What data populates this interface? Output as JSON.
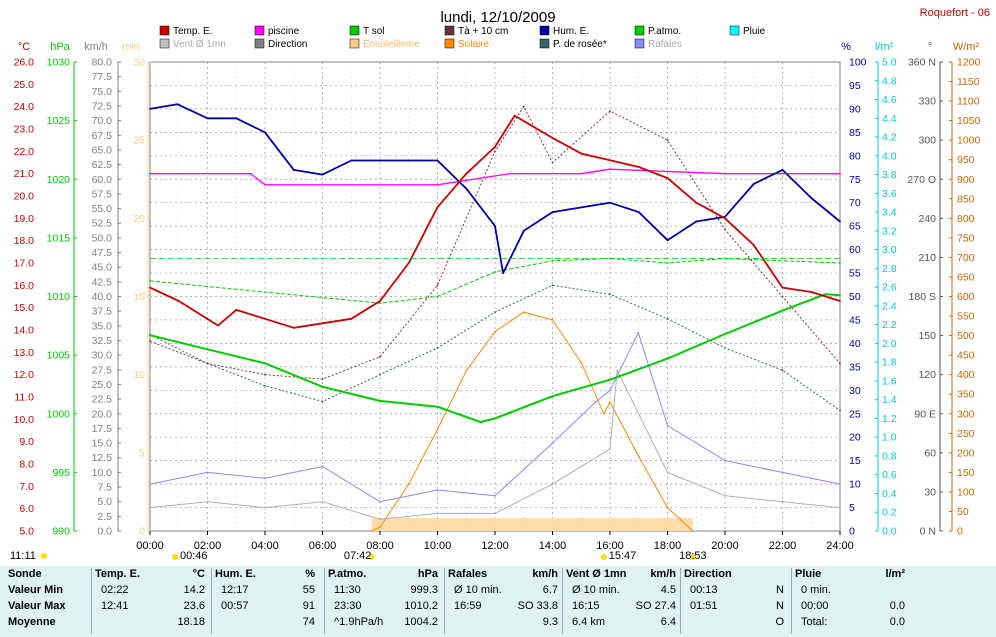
{
  "header": {
    "title": "lundi, 12/10/2009",
    "station": "Roquefort - 06"
  },
  "legend": [
    {
      "label": "Temp. E.",
      "color": "#cc0000"
    },
    {
      "label": "piscine",
      "color": "#ff00ff"
    },
    {
      "label": "T sol",
      "color": "#00cc00"
    },
    {
      "label": "Tà + 10 cm",
      "color": "#663333"
    },
    {
      "label": "Hum. E.",
      "color": "#0000aa"
    },
    {
      "label": "P.atmo.",
      "color": "#00cc00"
    },
    {
      "label": "Pluie",
      "color": "#00ffff"
    },
    {
      "label": "Vent Ø 1mn",
      "color": "#c0c0c0"
    },
    {
      "label": "Direction",
      "color": "#808080"
    },
    {
      "label": "Ensoleilleme",
      "color": "#ffcc88"
    },
    {
      "label": "Solaire",
      "color": "#ff8800"
    },
    {
      "label": "P. de rosée*",
      "color": "#336666"
    },
    {
      "label": "Rafales",
      "color": "#8888ff"
    }
  ],
  "axes": {
    "temp": {
      "unit": "°C",
      "color": "#cc0000",
      "ticks": [
        "5.0",
        "6.0",
        "7.0",
        "8.0",
        "9.0",
        "10.0",
        "11.0",
        "12.0",
        "13.0",
        "14.0",
        "15.0",
        "16.0",
        "17.0",
        "18.0",
        "19.0",
        "20.0",
        "21.0",
        "22.0",
        "23.0",
        "24.0",
        "25.0",
        "26.0"
      ]
    },
    "pressure": {
      "unit": "hPa",
      "color": "#00cc00",
      "ticks": [
        "990",
        "995",
        "1000",
        "1005",
        "1010",
        "1015",
        "1020",
        "1025",
        "1030"
      ]
    },
    "wind": {
      "unit": "km/h",
      "color": "#808080",
      "ticks": [
        "0.0",
        "2.5",
        "5.0",
        "7.5",
        "10.0",
        "12.5",
        "15.0",
        "17.5",
        "20.0",
        "22.5",
        "25.0",
        "27.5",
        "30.0",
        "32.5",
        "35.0",
        "37.5",
        "40.0",
        "42.5",
        "45.0",
        "47.5",
        "50.0",
        "52.5",
        "55.0",
        "57.5",
        "60.0",
        "62.5",
        "65.0",
        "67.5",
        "70.0",
        "72.5",
        "75.0",
        "77.5",
        "80.0"
      ]
    },
    "sunshine": {
      "unit": "min",
      "color": "#ffcc88",
      "ticks": [
        "0",
        "5",
        "10",
        "15",
        "20",
        "25",
        "30"
      ]
    },
    "humidity": {
      "unit": "%",
      "color": "#0000aa",
      "ticks": [
        "0",
        "5",
        "10",
        "15",
        "20",
        "25",
        "30",
        "35",
        "40",
        "45",
        "50",
        "55",
        "60",
        "65",
        "70",
        "75",
        "80",
        "85",
        "90",
        "95",
        "100"
      ]
    },
    "rain": {
      "unit": "l/m²",
      "color": "#00cccc",
      "ticks": [
        "0.0",
        "0.2",
        "0.4",
        "0.6",
        "0.8",
        "1.0",
        "1.2",
        "1.4",
        "1.6",
        "1.8",
        "2.0",
        "2.2",
        "2.4",
        "2.6",
        "2.8",
        "3.0",
        "3.2",
        "3.4",
        "3.6",
        "3.8",
        "4.0",
        "4.2",
        "4.4",
        "4.6",
        "4.8",
        "5.0"
      ]
    },
    "direction": {
      "unit": "°",
      "color": "#808080",
      "ticks": [
        "0 N",
        "30",
        "60",
        "90 E",
        "120",
        "150",
        "180 S",
        "210",
        "240",
        "270 O",
        "300",
        "330",
        "360 N"
      ]
    },
    "solar": {
      "unit": "W/m²",
      "color": "#cc6600",
      "ticks": [
        "0",
        "50",
        "100",
        "150",
        "200",
        "250",
        "300",
        "350",
        "400",
        "450",
        "500",
        "550",
        "600",
        "650",
        "700",
        "750",
        "800",
        "850",
        "900",
        "950",
        "1000",
        "1050",
        "1100",
        "1150",
        "1200"
      ]
    },
    "time_ticks": [
      "00:00",
      "02:00",
      "04:00",
      "06:00",
      "08:00",
      "10:00",
      "12:00",
      "14:00",
      "16:00",
      "18:00",
      "20:00",
      "22:00",
      "24:00"
    ]
  },
  "events": {
    "moonrise": "11:11",
    "moon2": "00:46",
    "sunrise": "07:42",
    "solar_noon": "15:47",
    "sunset": "18:53"
  },
  "chart_data": {
    "type": "line",
    "xlabel": "",
    "x_range": [
      "00:00",
      "24:00"
    ],
    "series": [
      {
        "name": "Temp. E.",
        "unit": "°C",
        "x": [
          "00:00",
          "01:00",
          "02:22",
          "03:00",
          "04:00",
          "05:00",
          "06:00",
          "07:00",
          "08:00",
          "09:00",
          "10:00",
          "11:00",
          "12:00",
          "12:41",
          "14:00",
          "15:00",
          "16:00",
          "17:00",
          "18:00",
          "19:00",
          "20:00",
          "21:00",
          "22:00",
          "23:00",
          "24:00"
        ],
        "y": [
          15.9,
          15.3,
          14.2,
          14.9,
          14.5,
          14.1,
          14.3,
          14.5,
          15.3,
          17.0,
          19.5,
          21.0,
          22.2,
          23.6,
          22.6,
          21.9,
          21.6,
          21.3,
          20.8,
          19.7,
          19.0,
          17.8,
          15.9,
          15.7,
          15.3
        ]
      },
      {
        "name": "Hum. E.",
        "unit": "%",
        "x": [
          "00:00",
          "00:57",
          "02:00",
          "03:00",
          "04:00",
          "05:00",
          "06:00",
          "07:00",
          "08:00",
          "09:00",
          "10:00",
          "11:00",
          "12:00",
          "12:17",
          "13:00",
          "14:00",
          "15:00",
          "16:00",
          "17:00",
          "18:00",
          "19:00",
          "20:00",
          "21:00",
          "22:00",
          "23:00",
          "24:00"
        ],
        "y": [
          90,
          91,
          88,
          88,
          85,
          77,
          76,
          79,
          79,
          79,
          79,
          73,
          65,
          55,
          64,
          68,
          69,
          70,
          68,
          62,
          66,
          67,
          74,
          77,
          71,
          66
        ]
      },
      {
        "name": "P.atmo.",
        "unit": "hPa",
        "x": [
          "00:00",
          "02:00",
          "04:00",
          "06:00",
          "08:00",
          "10:00",
          "11:30",
          "12:00",
          "14:00",
          "16:00",
          "18:00",
          "20:00",
          "22:00",
          "23:30",
          "24:00"
        ],
        "y": [
          1006.7,
          1005.5,
          1004.3,
          1002.3,
          1001.1,
          1000.6,
          999.3,
          999.6,
          1001.5,
          1002.9,
          1004.7,
          1006.8,
          1008.8,
          1010.2,
          1010.1
        ]
      },
      {
        "name": "piscine",
        "unit": "°C",
        "x": [
          "00:00",
          "03:30",
          "04:00",
          "10:00",
          "12:30",
          "15:00",
          "16:00",
          "20:00",
          "24:00"
        ],
        "y": [
          21.0,
          21.0,
          20.5,
          20.5,
          21.0,
          21.0,
          21.2,
          21.0,
          21.0
        ]
      },
      {
        "name": "T sol",
        "unit": "°C",
        "x": [
          "00:00",
          "08:00",
          "10:00",
          "12:00",
          "14:00",
          "16:00",
          "18:00",
          "20:00",
          "24:00"
        ],
        "y": [
          16.2,
          15.2,
          15.5,
          16.6,
          17.1,
          17.2,
          17.0,
          17.2,
          17.0
        ]
      },
      {
        "name": "Tà + 10 cm",
        "unit": "°C",
        "x": [
          "00:00",
          "02:00",
          "04:00",
          "06:00",
          "08:00",
          "10:00",
          "12:00",
          "13:00",
          "14:00",
          "16:00",
          "18:00",
          "20:00",
          "22:00",
          "24:00"
        ],
        "y": [
          13.5,
          12.5,
          12.0,
          11.8,
          12.8,
          16.0,
          22.0,
          24.0,
          21.5,
          23.8,
          22.5,
          18.5,
          15.5,
          12.5
        ]
      },
      {
        "name": "P. de rosée*",
        "unit": "°C",
        "x": [
          "00:00",
          "02:00",
          "04:00",
          "06:00",
          "08:00",
          "10:00",
          "12:00",
          "14:00",
          "16:00",
          "18:00",
          "20:00",
          "22:00",
          "24:00"
        ],
        "y": [
          13.8,
          12.5,
          11.5,
          10.8,
          12.0,
          13.2,
          14.8,
          16.0,
          15.6,
          14.5,
          13.2,
          12.2,
          10.4
        ]
      },
      {
        "name": "Rafales",
        "unit": "km/h",
        "x": [
          "00:00",
          "02:00",
          "04:00",
          "06:00",
          "08:00",
          "10:00",
          "12:00",
          "14:00",
          "15:30",
          "16:00",
          "16:59",
          "18:00",
          "20:00",
          "22:00",
          "24:00"
        ],
        "y": [
          8,
          10,
          9,
          11,
          5,
          7,
          6,
          15,
          22,
          24,
          33.8,
          18,
          12,
          10,
          8
        ]
      },
      {
        "name": "Vent Ø 1mn",
        "unit": "km/h",
        "x": [
          "00:00",
          "02:00",
          "04:00",
          "06:00",
          "08:00",
          "10:00",
          "12:00",
          "14:00",
          "16:00",
          "16:15",
          "18:00",
          "20:00",
          "22:00",
          "24:00"
        ],
        "y": [
          4,
          5,
          4,
          5,
          2,
          3,
          3,
          8,
          14,
          27.4,
          10,
          6,
          5,
          4
        ]
      },
      {
        "name": "Solaire",
        "unit": "W/m²",
        "x": [
          "07:42",
          "08:00",
          "09:00",
          "10:00",
          "11:00",
          "12:00",
          "13:00",
          "14:00",
          "15:00",
          "15:47",
          "16:00",
          "17:00",
          "18:00",
          "18:53"
        ],
        "y": [
          0,
          10,
          120,
          260,
          410,
          510,
          560,
          540,
          430,
          300,
          330,
          190,
          60,
          0
        ]
      }
    ]
  },
  "summary": {
    "headers": [
      "Sonde",
      "Temp. E.",
      "°C",
      "Hum. E.",
      "%",
      "P.atmo.",
      "hPa",
      "Rafales",
      "km/h",
      "Vent Ø 1mn",
      "km/h",
      "Direction",
      "Pluie",
      "l/m²"
    ],
    "rows": [
      {
        "label": "Valeur Min",
        "cells": [
          "02:22",
          "14.2",
          "12:17",
          "55",
          "11:30",
          "999.3",
          "Ø 10 min.",
          "6.7",
          "Ø 10 min.",
          "4.5",
          "00:13",
          "N",
          "0 min.",
          ""
        ]
      },
      {
        "label": "Valeur Max",
        "cells": [
          "12:41",
          "23.6",
          "00:57",
          "91",
          "23:30",
          "1010.2",
          "16:59",
          "SO 33.8",
          "16:15",
          "SO 27.4",
          "01:51",
          "N",
          "00:00",
          "0.0"
        ]
      },
      {
        "label": "Moyenne",
        "cells": [
          "",
          "18.18",
          "",
          "74",
          "^1.9hPa/h",
          "1004.2",
          "",
          "9.3",
          "6.4 km",
          "6.4",
          "",
          "O",
          "Total:",
          "0.0"
        ]
      }
    ]
  }
}
